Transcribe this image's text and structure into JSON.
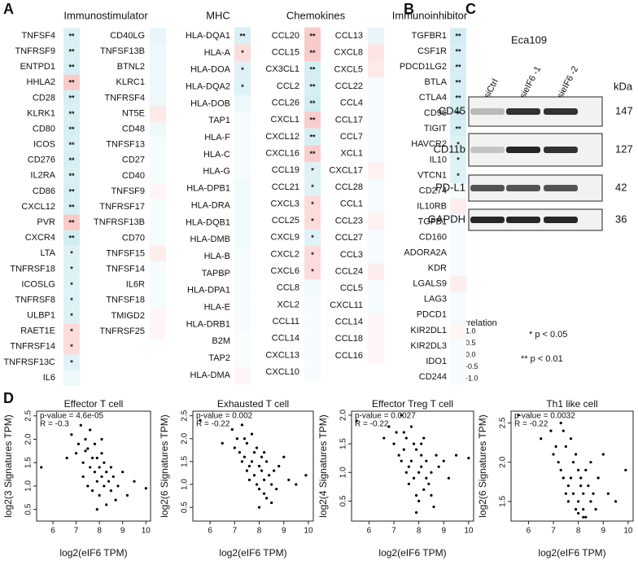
{
  "panels": {
    "a": "A",
    "b": "B",
    "c": "C",
    "d": "D"
  },
  "heatmap": {
    "colormap": [
      "#45b5cf",
      "#ffffff",
      "#e9504a"
    ],
    "headers": [
      "Immunostimulator",
      "MHC",
      "Chemokines",
      "Immunoinhibitor"
    ],
    "columns": [
      {
        "genes": [
          "TNFSF4",
          "TNFRSF9",
          "ENTPD1",
          "HHLA2",
          "CD28",
          "KLRK1",
          "CD80",
          "ICOS",
          "CD276",
          "IL2RA",
          "CD86",
          "CXCL12",
          "PVR",
          "CXCR4",
          "LTA",
          "TNFRSF18",
          "ICOSLG",
          "TNFRSF8",
          "ULBP1",
          "RAET1E",
          "TNFRSF14",
          "TNFRSF13C",
          "IL6"
        ],
        "r": [
          -0.2,
          -0.2,
          -0.22,
          0.3,
          -0.22,
          -0.2,
          -0.22,
          -0.2,
          -0.22,
          -0.2,
          -0.22,
          -0.22,
          0.3,
          -0.25,
          -0.18,
          -0.18,
          -0.17,
          -0.17,
          -0.18,
          0.2,
          0.2,
          -0.17,
          -0.1
        ],
        "sig": [
          "**",
          "**",
          "**",
          "**",
          "**",
          "**",
          "**",
          "**",
          "**",
          "**",
          "**",
          "**",
          "**",
          "**",
          "*",
          "*",
          "*",
          "*",
          "*",
          "*",
          "*",
          "*",
          null
        ]
      },
      {
        "genes": [
          "CD40LG",
          "TNFSF13B",
          "BTNL2",
          "KLRC1",
          "TNFRSF4",
          "NT5E",
          "CD48",
          "TNFSF13",
          "CD27",
          "CD40",
          "TNFSF9",
          "TNFRSF17",
          "TNFRSF13B",
          "CD70",
          "TNFSF15",
          "TNFSF14",
          "IL6R",
          "TNFSF18",
          "TMIGD2",
          "TNFRSF25"
        ],
        "r": [
          -0.12,
          -0.1,
          -0.1,
          -0.1,
          -0.1,
          0.12,
          -0.1,
          -0.05,
          -0.05,
          -0.05,
          0.05,
          -0.05,
          -0.05,
          -0.05,
          0.1,
          -0.05,
          -0.05,
          -0.05,
          0.05,
          0.05
        ],
        "sig": [
          null,
          null,
          null,
          null,
          null,
          null,
          null,
          null,
          null,
          null,
          null,
          null,
          null,
          null,
          null,
          null,
          null,
          null,
          null,
          null
        ]
      },
      {
        "genes": [
          "HLA-DQA1",
          "HLA-A",
          "HLA-DOA",
          "HLA-DQA2",
          "HLA-DOB",
          "TAP1",
          "HLA-F",
          "HLA-C",
          "HLA-G",
          "HLA-DPB1",
          "HLA-DRA",
          "HLA-DQB1",
          "HLA-DMB",
          "HLA-B",
          "TAPBP",
          "HLA-DPA1",
          "HLA-E",
          "HLA-DRB1",
          "B2M",
          "TAP2",
          "HLA-DMA"
        ],
        "r": [
          -0.2,
          0.2,
          -0.18,
          -0.17,
          -0.1,
          -0.05,
          -0.05,
          -0.05,
          -0.05,
          -0.08,
          -0.08,
          -0.08,
          -0.08,
          -0.05,
          -0.05,
          -0.05,
          -0.05,
          -0.05,
          -0.03,
          -0.03,
          0.05
        ],
        "sig": [
          "**",
          "*",
          "*",
          "*",
          null,
          null,
          null,
          null,
          null,
          null,
          null,
          null,
          null,
          null,
          null,
          null,
          null,
          null,
          null,
          null,
          null
        ]
      },
      {
        "genes": [
          "CCL20",
          "CCL15",
          "CX3CL1",
          "CCL2",
          "CCL26",
          "CXCL1",
          "CXCL12",
          "CXCL16",
          "CCL19",
          "CCL21",
          "CXCL3",
          "CCL25",
          "CXCL9",
          "CXCL2",
          "CXCL6",
          "CCL8",
          "XCL2",
          "CCL11",
          "CCL14",
          "CXCL13",
          "CXCL10"
        ],
        "r": [
          0.3,
          0.3,
          -0.22,
          -0.22,
          -0.25,
          0.28,
          -0.22,
          0.28,
          -0.18,
          -0.17,
          0.2,
          0.2,
          -0.17,
          0.2,
          0.2,
          -0.08,
          -0.05,
          -0.05,
          -0.05,
          -0.05,
          -0.05
        ],
        "sig": [
          "**",
          "**",
          "**",
          "**",
          "**",
          "**",
          "**",
          "**",
          "*",
          "*",
          "*",
          "*",
          "*",
          "*",
          "*",
          null,
          null,
          null,
          null,
          null,
          null
        ]
      },
      {
        "genes": [
          "CCL13",
          "CXCL8",
          "CXCL5",
          "CCL22",
          "CCL4",
          "CCL17",
          "CCL7",
          "XCL1",
          "CXCL17",
          "CCL28",
          "CCL1",
          "CCL23",
          "CCL27",
          "CCL3",
          "CCL24",
          "CCL5",
          "CXCL11",
          "CCL14",
          "CCL18",
          "CCL16"
        ],
        "r": [
          -0.12,
          0.15,
          0.12,
          -0.05,
          -0.05,
          -0.05,
          -0.05,
          -0.05,
          0.08,
          -0.05,
          -0.05,
          0.08,
          -0.05,
          -0.05,
          0.1,
          -0.05,
          -0.05,
          0.05,
          0.05,
          0.05
        ],
        "sig": [
          null,
          null,
          null,
          null,
          null,
          null,
          null,
          null,
          null,
          null,
          null,
          null,
          null,
          null,
          null,
          null,
          null,
          null,
          null,
          null
        ]
      },
      {
        "genes": [
          "TGFBR1",
          "CSF1R",
          "PDCD1LG2",
          "BTLA",
          "CTLA4",
          "CD96",
          "TIGIT",
          "HAVCR2",
          "IL10",
          "VTCN1",
          "CD274",
          "IL10RB",
          "TGFB1",
          "CD160",
          "ADORA2A",
          "KDR",
          "LGALS9",
          "LAG3",
          "PDCD1",
          "KIR2DL1",
          "KIR2DL3",
          "IDO1",
          "CD244"
        ],
        "r": [
          -0.25,
          -0.22,
          -0.22,
          -0.22,
          -0.22,
          -0.25,
          -0.22,
          -0.18,
          -0.18,
          -0.17,
          -0.05,
          0.1,
          -0.05,
          -0.05,
          -0.05,
          -0.05,
          0.1,
          -0.05,
          -0.05,
          0.05,
          -0.05,
          -0.05,
          -0.05
        ],
        "sig": [
          "**",
          "**",
          "**",
          "**",
          "**",
          "**",
          "**",
          "*",
          "*",
          "*",
          null,
          null,
          null,
          null,
          null,
          null,
          null,
          null,
          null,
          null,
          null,
          null,
          null
        ]
      }
    ],
    "legend": {
      "title": "Correlation",
      "lim": [
        -1,
        1
      ],
      "ticks": [
        {
          "value": 1,
          "label": "1.0"
        },
        {
          "value": 0.5,
          "label": "0.5"
        },
        {
          "value": 0,
          "label": "0.0"
        },
        {
          "value": -0.5,
          "label": "-0.5"
        },
        {
          "value": -1,
          "label": "-1.0"
        }
      ],
      "notes": [
        "* p < 0.05",
        "** p < 0.01"
      ]
    }
  },
  "blot": {
    "title": "Eca109",
    "lanes": [
      "siCtrl",
      "sieIF6 -1",
      "sieIF6 -2"
    ],
    "unit": "kDa",
    "proteins": [
      {
        "name": "CD45",
        "size": 147
      },
      {
        "name": "CD11b",
        "size": 127
      },
      {
        "name": "PD-L1",
        "size": 42
      },
      {
        "name": "GAPDH",
        "size": 36
      }
    ]
  },
  "scatter_plots": [
    {
      "type": "scatter",
      "title": "Effector T cell",
      "x_label": "log2(eIF6 TPM)",
      "y_label": "log2(3 Signatures TPM)",
      "annotations": [
        "p-value = 4.6e-05",
        "R = -0.3"
      ],
      "color": "#000000",
      "xlim": [
        5.3,
        10.2
      ],
      "ylim": [
        0.25,
        2.6
      ],
      "xticks": [
        6,
        7,
        8,
        9,
        10
      ],
      "yticks": [
        {
          "value": 0.5,
          "label": "0.5"
        },
        {
          "value": 1,
          "label": "1.0"
        },
        {
          "value": 1.5,
          "label": "1.5"
        },
        {
          "value": 2,
          "label": "2.0"
        },
        {
          "value": 2.5,
          "label": "2.5"
        }
      ],
      "x": [
        5.5,
        6.6,
        6.8,
        7.0,
        7.1,
        7.2,
        7.3,
        7.3,
        7.4,
        7.5,
        7.5,
        7.6,
        7.6,
        7.7,
        7.7,
        7.8,
        7.8,
        7.9,
        7.9,
        8.0,
        8.0,
        8.1,
        8.1,
        8.2,
        8.2,
        8.3,
        8.3,
        8.4,
        8.5,
        8.5,
        8.6,
        8.7,
        8.8,
        9.0,
        9.2,
        9.5,
        10.0,
        7.4,
        7.9,
        8.1
      ],
      "y": [
        1.4,
        1.6,
        2.1,
        1.7,
        1.9,
        2.3,
        1.5,
        1.2,
        2.0,
        1.8,
        1.0,
        1.4,
        2.2,
        1.6,
        0.9,
        1.3,
        1.9,
        1.1,
        1.6,
        1.4,
        0.8,
        1.7,
        1.2,
        1.0,
        1.5,
        0.6,
        1.3,
        1.1,
        0.9,
        1.4,
        1.2,
        0.7,
        1.0,
        1.3,
        0.8,
        1.1,
        0.95,
        1.75,
        0.5,
        2.0
      ]
    },
    {
      "type": "scatter",
      "title": "Exhausted T cell",
      "x_label": "log2(eIF6 TPM)",
      "y_label": "log2(6 Signatures TPM)",
      "annotations": [
        "p-value = 0.002",
        "R = -0.22"
      ],
      "color": "#000000",
      "xlim": [
        5.3,
        10.2
      ],
      "ylim": [
        0.2,
        2.6
      ],
      "xticks": [
        6,
        7,
        8,
        9,
        10
      ],
      "yticks": [
        {
          "value": 0.5,
          "label": "0.5"
        },
        {
          "value": 1,
          "label": "1.0"
        },
        {
          "value": 1.5,
          "label": "1.5"
        },
        {
          "value": 2,
          "label": "2.0"
        },
        {
          "value": 2.5,
          "label": "2.5"
        }
      ],
      "x": [
        5.6,
        6.5,
        6.9,
        7.0,
        7.1,
        7.2,
        7.3,
        7.3,
        7.4,
        7.5,
        7.5,
        7.6,
        7.6,
        7.7,
        7.7,
        7.8,
        7.8,
        7.9,
        7.9,
        8.0,
        8.0,
        8.1,
        8.1,
        8.2,
        8.2,
        8.3,
        8.3,
        8.4,
        8.5,
        8.5,
        8.6,
        8.7,
        8.8,
        9.0,
        9.2,
        9.5,
        9.9,
        7.4,
        8.0,
        8.2
      ],
      "y": [
        2.4,
        1.9,
        2.2,
        1.8,
        2.0,
        1.7,
        1.5,
        2.3,
        1.6,
        1.3,
        1.9,
        1.4,
        1.1,
        2.1,
        1.5,
        1.7,
        1.2,
        1.0,
        1.8,
        1.4,
        0.9,
        1.6,
        1.3,
        1.1,
        0.8,
        1.5,
        0.7,
        1.2,
        1.0,
        0.6,
        1.3,
        0.9,
        1.4,
        1.6,
        1.1,
        1.0,
        1.2,
        2.0,
        0.5,
        1.7
      ]
    },
    {
      "type": "scatter",
      "title": "Effector Treg T cell",
      "x_label": "log2(eIF6 TPM)",
      "y_label": "log2(4 Signatures TPM)",
      "annotations": [
        "p-value = 0.0027",
        "R = -0.22"
      ],
      "color": "#000000",
      "xlim": [
        5.3,
        10.2
      ],
      "ylim": [
        0.15,
        2.07
      ],
      "xticks": [
        6,
        7,
        8,
        9,
        10
      ],
      "yticks": [
        {
          "value": 0.5,
          "label": "0.5"
        },
        {
          "value": 1,
          "label": "1.0"
        },
        {
          "value": 1.5,
          "label": "1.5"
        },
        {
          "value": 2,
          "label": "2.0"
        }
      ],
      "x": [
        5.5,
        6.6,
        6.8,
        7.0,
        7.1,
        7.2,
        7.3,
        7.3,
        7.4,
        7.5,
        7.5,
        7.6,
        7.6,
        7.7,
        7.7,
        7.8,
        7.8,
        7.9,
        7.9,
        8.0,
        8.0,
        8.1,
        8.1,
        8.2,
        8.2,
        8.3,
        8.3,
        8.4,
        8.5,
        8.5,
        8.6,
        8.7,
        8.8,
        9.0,
        9.2,
        9.5,
        10.0,
        7.4,
        7.9,
        8.1
      ],
      "y": [
        1.9,
        1.6,
        1.8,
        1.5,
        1.7,
        1.3,
        1.2,
        2.0,
        1.4,
        1.0,
        1.6,
        1.1,
        0.8,
        1.8,
        1.2,
        1.5,
        0.9,
        0.6,
        1.4,
        1.0,
        0.5,
        1.3,
        1.1,
        0.7,
        1.6,
        0.9,
        1.2,
        0.8,
        0.6,
        1.0,
        0.4,
        1.3,
        1.1,
        1.2,
        0.9,
        1.3,
        1.25,
        1.7,
        0.3,
        1.5
      ]
    },
    {
      "type": "scatter",
      "title": "Th1 like cell",
      "x_label": "log2(eIF6 TPM)",
      "y_label": "log2(6 Signatures TPM)",
      "annotations": [
        "p-value = 0.0032",
        "R = -0.22"
      ],
      "color": "#000000",
      "xlim": [
        5.3,
        10.2
      ],
      "ylim": [
        1.25,
        2.65
      ],
      "xticks": [
        6,
        7,
        8,
        9,
        10
      ],
      "yticks": [
        {
          "value": 1.5,
          "label": "1.5"
        },
        {
          "value": 2,
          "label": "2.0"
        },
        {
          "value": 2.5,
          "label": "2.5"
        }
      ],
      "x": [
        5.6,
        6.5,
        6.9,
        7.0,
        7.1,
        7.2,
        7.3,
        7.3,
        7.4,
        7.5,
        7.5,
        7.6,
        7.6,
        7.7,
        7.7,
        7.8,
        7.8,
        7.9,
        7.9,
        8.0,
        8.0,
        8.1,
        8.1,
        8.2,
        8.2,
        8.3,
        8.3,
        8.4,
        8.5,
        8.5,
        8.6,
        8.7,
        8.8,
        9.0,
        9.2,
        9.5,
        9.9,
        7.4,
        8.0,
        8.2
      ],
      "y": [
        2.6,
        2.3,
        2.4,
        2.1,
        2.2,
        2.0,
        1.9,
        2.5,
        1.8,
        1.6,
        2.2,
        1.7,
        1.5,
        2.3,
        1.8,
        2.0,
        1.6,
        1.4,
        2.1,
        1.9,
        1.5,
        1.8,
        1.7,
        1.4,
        1.6,
        1.9,
        1.3,
        1.7,
        1.5,
        2.0,
        1.6,
        1.4,
        1.8,
        2.1,
        1.6,
        1.5,
        1.9,
        2.4,
        1.35,
        1.3
      ]
    }
  ]
}
